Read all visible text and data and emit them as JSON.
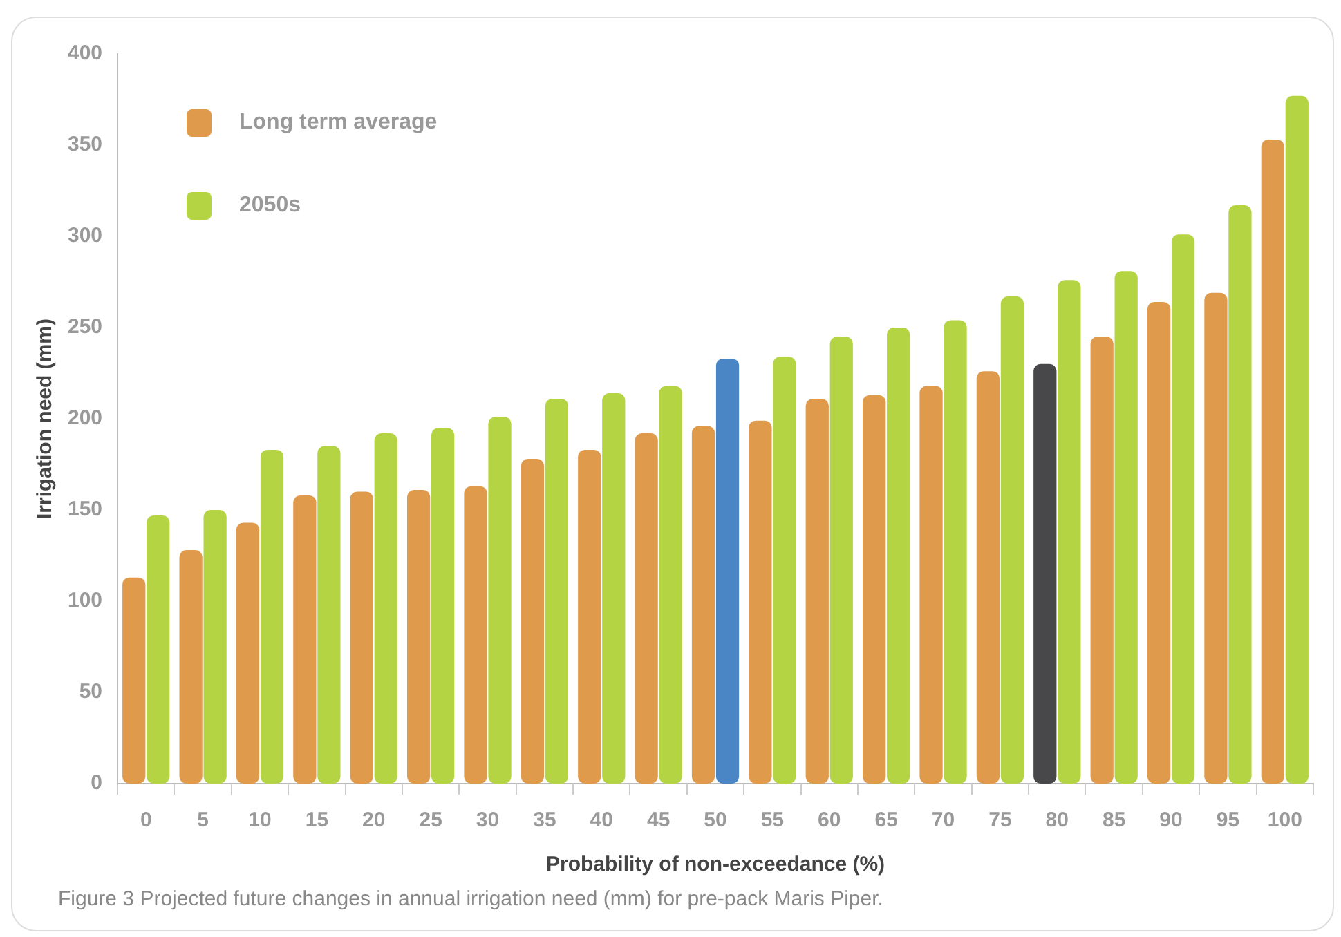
{
  "chart_data": {
    "type": "bar",
    "xlabel": "Probability of non-exceedance (%)",
    "ylabel": "Irrigation need (mm)",
    "categories": [
      "0",
      "5",
      "10",
      "15",
      "20",
      "25",
      "30",
      "35",
      "40",
      "45",
      "50",
      "55",
      "60",
      "65",
      "70",
      "75",
      "80",
      "85",
      "90",
      "95",
      "100"
    ],
    "series": [
      {
        "name": "Long term average",
        "color": "#e09a4c",
        "colors": [
          "#e09a4c",
          "#e09a4c",
          "#e09a4c",
          "#e09a4c",
          "#e09a4c",
          "#e09a4c",
          "#e09a4c",
          "#e09a4c",
          "#e09a4c",
          "#e09a4c",
          "#e09a4c",
          "#e09a4c",
          "#e09a4c",
          "#e09a4c",
          "#e09a4c",
          "#e09a4c",
          "#48484a",
          "#e09a4c",
          "#e09a4c",
          "#e09a4c",
          "#e09a4c"
        ],
        "values": [
          113,
          128,
          143,
          158,
          160,
          161,
          163,
          178,
          183,
          192,
          196,
          199,
          211,
          213,
          218,
          226,
          230,
          245,
          264,
          269,
          353
        ]
      },
      {
        "name": "2050s",
        "color": "#b5d444",
        "colors": [
          "#b5d444",
          "#b5d444",
          "#b5d444",
          "#b5d444",
          "#b5d444",
          "#b5d444",
          "#b5d444",
          "#b5d444",
          "#b5d444",
          "#b5d444",
          "#4a86c5",
          "#b5d444",
          "#b5d444",
          "#b5d444",
          "#b5d444",
          "#b5d444",
          "#b5d444",
          "#b5d444",
          "#b5d444",
          "#b5d444",
          "#b5d444"
        ],
        "values": [
          147,
          150,
          183,
          185,
          192,
          195,
          201,
          211,
          214,
          218,
          233,
          234,
          245,
          250,
          254,
          267,
          276,
          281,
          301,
          317,
          377
        ]
      }
    ],
    "ylim": [
      0,
      400
    ],
    "yticks": [
      0,
      50,
      100,
      150,
      200,
      250,
      300,
      350,
      400
    ],
    "grid": false,
    "legend": "top left",
    "annotations": [
      "Figure 3 Projected future changes in annual irrigation need (mm) for pre-pack Maris Piper."
    ]
  }
}
